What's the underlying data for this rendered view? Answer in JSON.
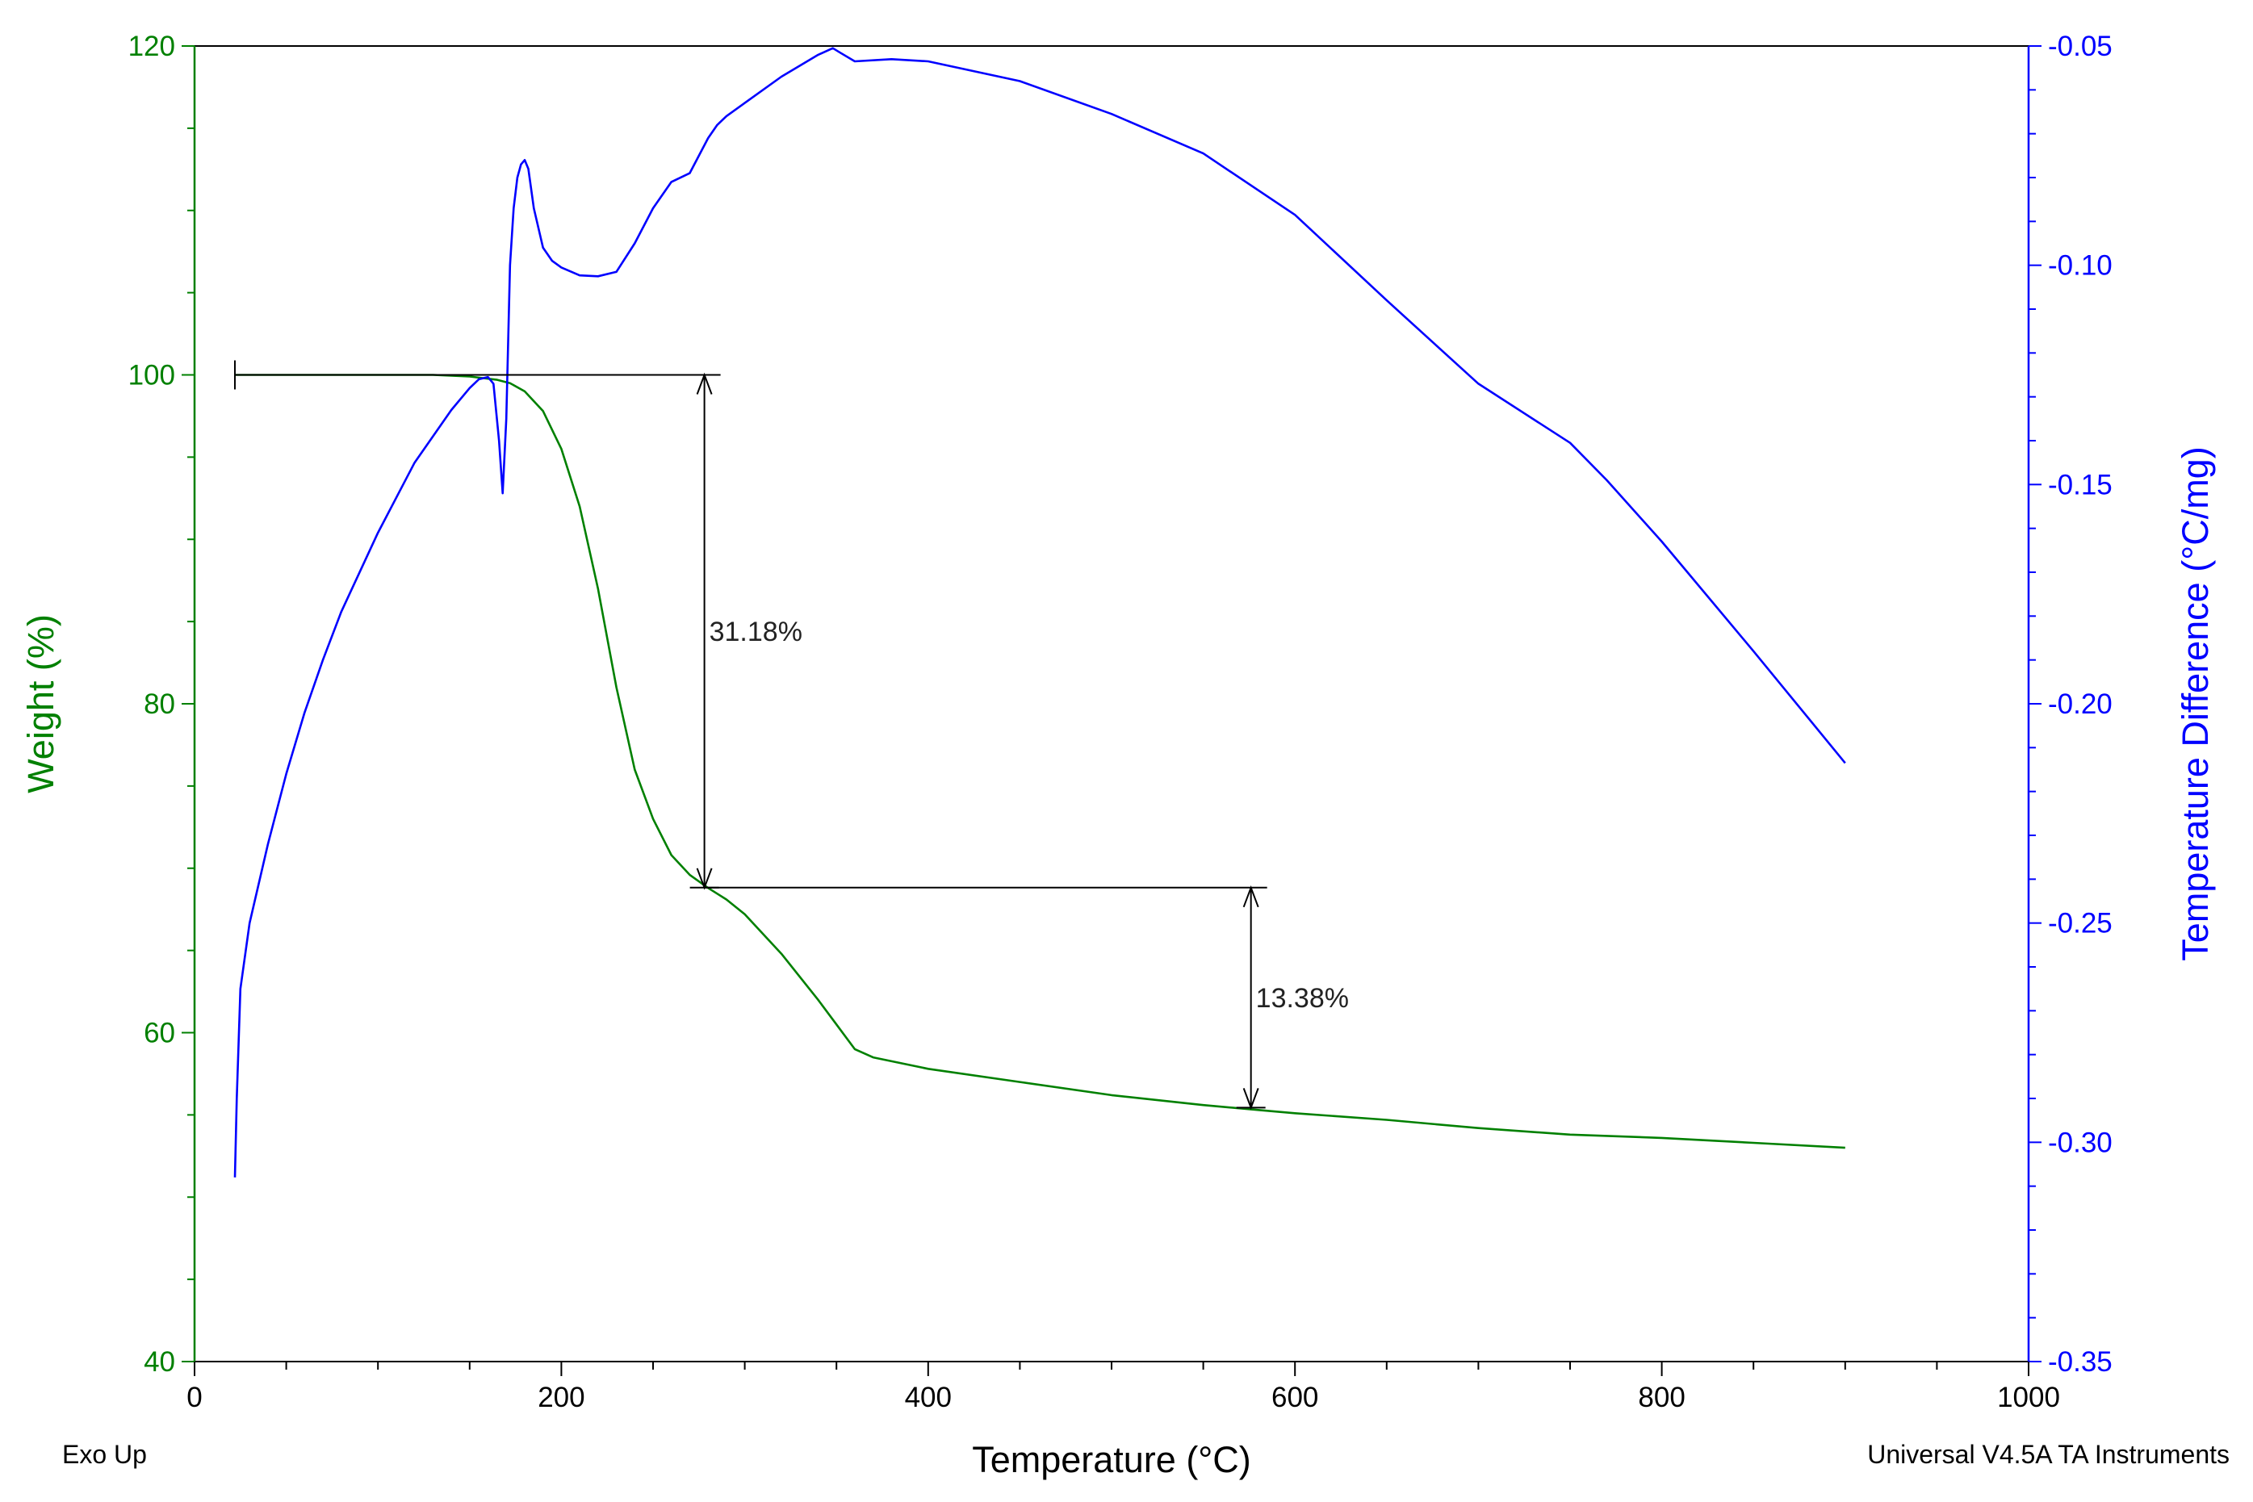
{
  "colors": {
    "weight": "#008000",
    "temp_diff": "#0000ff",
    "annotation": "#000000",
    "background": "#ffffff"
  },
  "footer": {
    "left": "Exo Up",
    "right": "Universal V4.5A TA Instruments"
  },
  "chart_data": {
    "type": "line",
    "title": "",
    "xlabel": "Temperature (°C)",
    "ylabel_left": "Weight (%)",
    "ylabel_right": "Temperature Difference (°C/mg)",
    "xlim": [
      0,
      1000
    ],
    "ylim_left": [
      40,
      120
    ],
    "ylim_right": [
      -0.35,
      -0.05
    ],
    "x_ticks": [
      0,
      200,
      400,
      600,
      800,
      1000
    ],
    "x_tick_labels": [
      "0",
      "200",
      "400",
      "600",
      "800",
      "1000"
    ],
    "y_left_ticks": [
      40,
      60,
      80,
      100,
      120
    ],
    "y_left_tick_labels": [
      "40",
      "60",
      "80",
      "100",
      "120"
    ],
    "y_right_ticks": [
      -0.35,
      -0.3,
      -0.25,
      -0.2,
      -0.15,
      -0.1,
      -0.05
    ],
    "y_right_tick_labels": [
      "-0.35",
      "-0.30",
      "-0.25",
      "-0.20",
      "-0.15",
      "-0.10",
      "-0.05"
    ],
    "grid": false,
    "series": [
      {
        "name": "Weight",
        "axis": "left",
        "color": "#008000",
        "x": [
          22,
          50,
          100,
          130,
          150,
          165,
          172,
          180,
          190,
          200,
          210,
          220,
          230,
          240,
          250,
          260,
          270,
          280,
          290,
          300,
          320,
          340,
          350,
          360,
          370,
          400,
          450,
          500,
          550,
          580,
          600,
          650,
          700,
          750,
          800,
          850,
          900
        ],
        "y": [
          100,
          100,
          100,
          100,
          99.9,
          99.7,
          99.5,
          99,
          97.8,
          95.5,
          92,
          87,
          81,
          76,
          73,
          70.8,
          69.6,
          68.8,
          68.1,
          67.2,
          64.8,
          62,
          60.5,
          59,
          58.5,
          57.8,
          57.0,
          56.2,
          55.6,
          55.3,
          55.1,
          54.7,
          54.2,
          53.8,
          53.6,
          53.3,
          53.0
        ]
      },
      {
        "name": "Temperature Difference",
        "axis": "right",
        "color": "#0000ff",
        "x": [
          22,
          23,
          25,
          30,
          40,
          50,
          60,
          70,
          80,
          100,
          120,
          140,
          150,
          155,
          160,
          163,
          166,
          168,
          170,
          172,
          174,
          176,
          178,
          180,
          182,
          185,
          190,
          195,
          200,
          210,
          220,
          230,
          240,
          250,
          260,
          270,
          280,
          285,
          290,
          300,
          320,
          340,
          348,
          352,
          360,
          380,
          400,
          450,
          500,
          550,
          600,
          650,
          700,
          750,
          770,
          800,
          850,
          900
        ],
        "y": [
          -0.308,
          -0.29,
          -0.265,
          -0.25,
          -0.232,
          -0.216,
          -0.202,
          -0.19,
          -0.179,
          -0.161,
          -0.145,
          -0.133,
          -0.128,
          -0.126,
          -0.1255,
          -0.127,
          -0.14,
          -0.152,
          -0.135,
          -0.1,
          -0.087,
          -0.08,
          -0.077,
          -0.076,
          -0.078,
          -0.087,
          -0.096,
          -0.099,
          -0.1005,
          -0.1023,
          -0.1025,
          -0.1015,
          -0.095,
          -0.087,
          -0.081,
          -0.079,
          -0.071,
          -0.068,
          -0.066,
          -0.063,
          -0.057,
          -0.052,
          -0.0505,
          -0.0515,
          -0.0535,
          -0.053,
          -0.0535,
          -0.058,
          -0.0655,
          -0.0745,
          -0.0885,
          -0.108,
          -0.127,
          -0.1405,
          -0.149,
          -0.163,
          -0.188,
          -0.2135
        ]
      }
    ],
    "annotations": [
      {
        "label": "31.18%",
        "step_value": 31.18,
        "x": 278,
        "from": 100.0,
        "to": 68.82
      },
      {
        "label": "13.38%",
        "step_value": 13.38,
        "x": 576,
        "from": 68.82,
        "to": 55.44
      }
    ]
  }
}
